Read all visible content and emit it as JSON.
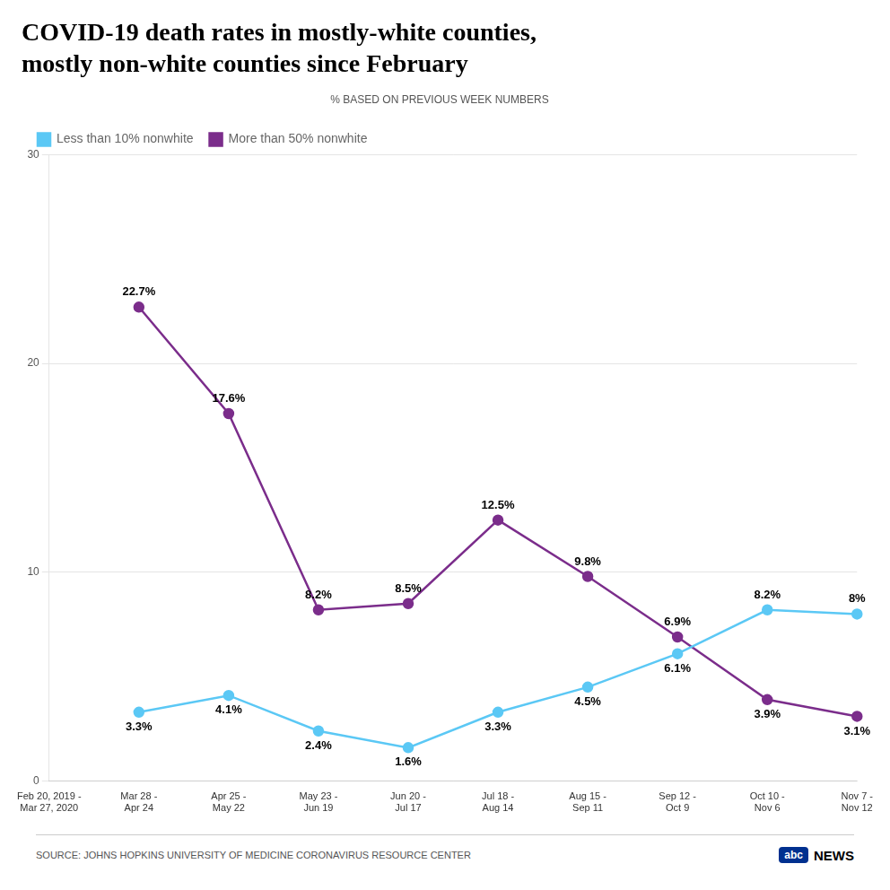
{
  "chart_data": {
    "type": "line",
    "title": "COVID-19 death rates in mostly-white counties,\nmostly non-white counties since February",
    "subtitle": "% BASED ON PREVIOUS WEEK NUMBERS",
    "annotations": [
      "SOURCE: JOHNS HOPKINS UNIVERSITY OF MEDICINE CORONAVIRUS RESOURCE CENTER",
      "abc",
      "NEWS"
    ],
    "categories": [
      "Feb 20, 2019 -\nMar 27, 2020",
      "Mar 28 -\nApr 24",
      "Apr 25 -\nMay 22",
      "May 23 -\nJun 19",
      "Jun 20 -\nJul 17",
      "Jul 18 -\nAug 14",
      "Aug 15 -\nSep 11",
      "Sep 12 -\nOct 9",
      "Oct 10 -\nNov 6",
      "Nov 7 -\nNov 12"
    ],
    "series": [
      {
        "name": "Less than 10% nonwhite",
        "color": "#5BC8F5",
        "values": [
          null,
          3.3,
          4.1,
          2.4,
          1.6,
          3.3,
          4.5,
          6.1,
          8.2,
          8.0
        ],
        "value_labels": [
          null,
          "3.3%",
          "4.1%",
          "2.4%",
          "1.6%",
          "3.3%",
          "4.5%",
          "6.1%",
          "8.2%",
          "8%"
        ]
      },
      {
        "name": "More than 50% nonwhite",
        "color": "#7B2D8B",
        "values": [
          null,
          22.7,
          17.6,
          8.2,
          8.5,
          12.5,
          9.8,
          6.9,
          3.9,
          3.1
        ],
        "value_labels": [
          null,
          "22.7%",
          "17.6%",
          "8.2%",
          "8.5%",
          "12.5%",
          "9.8%",
          "6.9%",
          "3.9%",
          "3.1%"
        ]
      }
    ],
    "ylim": [
      0,
      30
    ],
    "yticks": [
      0,
      10,
      20,
      30
    ],
    "grid": true,
    "legend": "upper left",
    "data_labels": true,
    "marker": "circle",
    "line_style": "solid"
  }
}
